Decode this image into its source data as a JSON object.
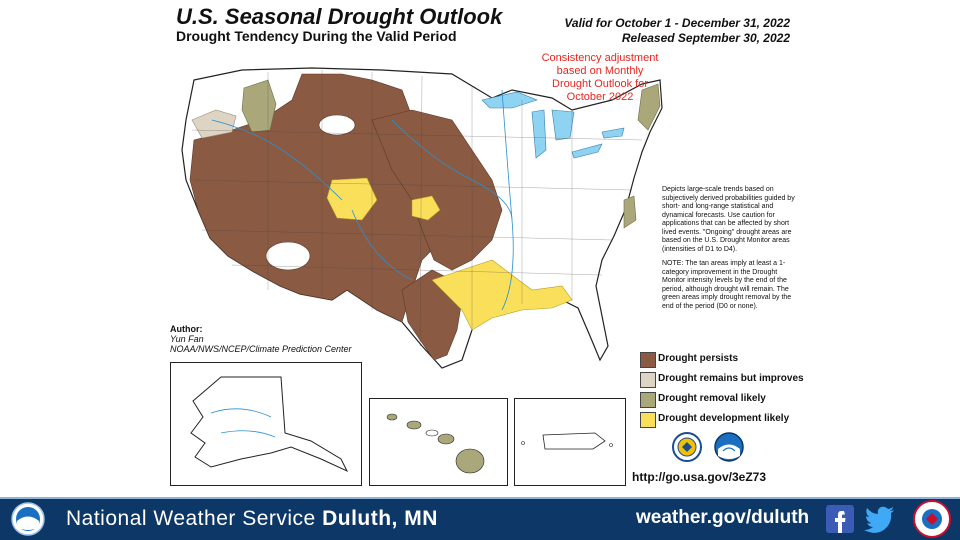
{
  "header": {
    "title": "U.S. Seasonal Drought Outlook",
    "subtitle": "Drought Tendency During the Valid Period",
    "valid_line": "Valid for October 1 - December 31, 2022",
    "released_line": "Released September 30, 2022"
  },
  "annotation": {
    "line1": "Consistency adjustment",
    "line2": "based on Monthly",
    "line3": "Drought Outlook for",
    "line4": "October 2022"
  },
  "notes": {
    "paragraph1": "Depicts large-scale trends based on subjectively derived probabilities guided by short- and long-range statistical and dynamical forecasts. Use caution for applications that can be affected by short lived events. \"Ongoing\" drought areas are based on the U.S. Drought Monitor areas (intensities of D1 to D4).",
    "paragraph2": "NOTE: The tan areas imply at least a 1-category improvement in the Drought Monitor intensity levels by the end of the period, although drought will remain. The green areas imply drought removal by the end of the period (D0 or none)."
  },
  "author": {
    "heading": "Author:",
    "name": "Yun Fan",
    "org": "NOAA/NWS/NCEP/Climate Prediction Center"
  },
  "legend": [
    {
      "label": "Drought persists",
      "color": "#8b5a42"
    },
    {
      "label": "Drought remains but improves",
      "color": "#ddd4c3"
    },
    {
      "label": "Drought removal likely",
      "color": "#aaa77a"
    },
    {
      "label": "Drought development likely",
      "color": "#fae05a"
    }
  ],
  "link": "http://go.usa.gov/3eZ73",
  "colors": {
    "persists": "#8b5a42",
    "improves": "#ddd4c3",
    "removal": "#aaa77a",
    "development": "#fae05a",
    "lakes": "#8fd3f2",
    "footer": "#0d3766"
  },
  "footer": {
    "office_prefix": "National Weather Service",
    "office_name": "Duluth, MN",
    "website": "weather.gov/duluth",
    "icons": [
      "noaa-logo-icon",
      "facebook-icon",
      "twitter-icon",
      "weather-ready-nation-icon"
    ]
  }
}
